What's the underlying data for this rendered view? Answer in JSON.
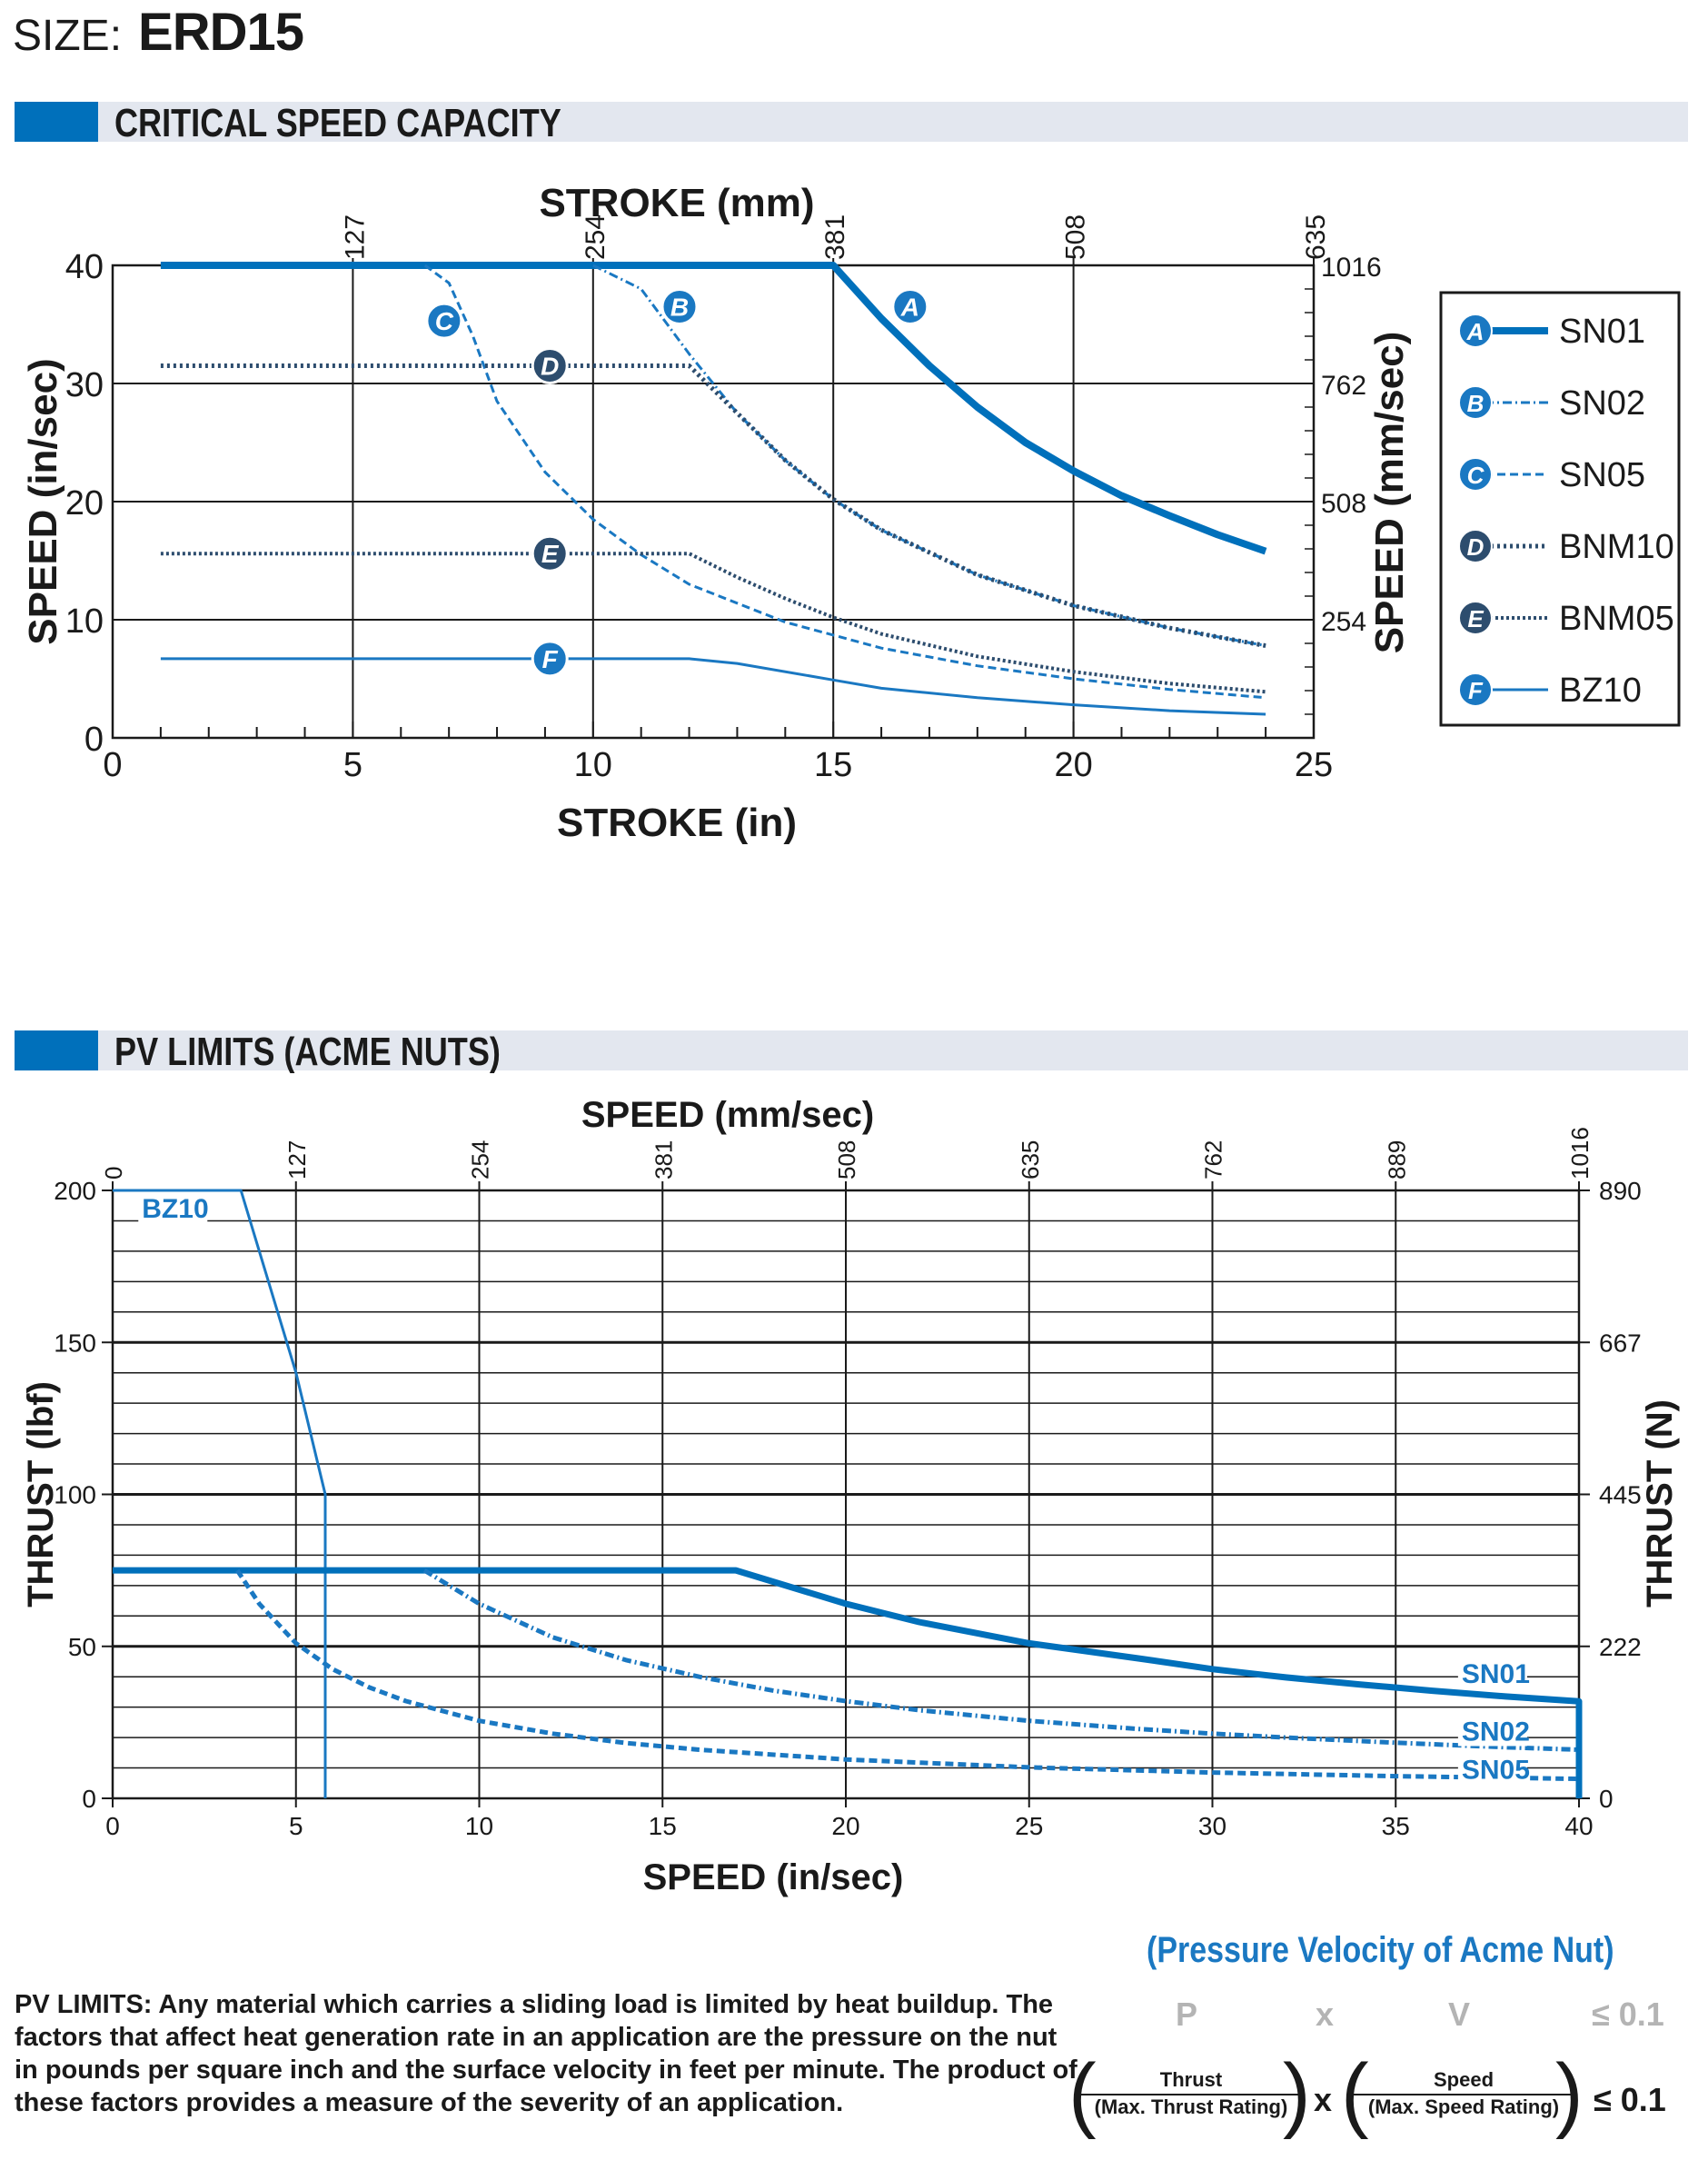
{
  "header": {
    "size_label": "SIZE:",
    "size_value": "ERD15"
  },
  "sections": {
    "critical": "CRITICAL SPEED CAPACITY",
    "pv": "PV LIMITS (ACME NUTS)"
  },
  "chart_data": [
    {
      "type": "line",
      "title": "",
      "xlabel": "STROKE (in)",
      "xlabel_top": "STROKE (mm)",
      "ylabel": "SPEED (in/sec)",
      "ylabel_right": "SPEED (mm/sec)",
      "xlim": [
        0,
        25
      ],
      "ylim": [
        0,
        40
      ],
      "x_ticks": [
        "0",
        "5",
        "10",
        "15",
        "20",
        "25"
      ],
      "y_ticks": [
        "0",
        "10",
        "20",
        "30",
        "40"
      ],
      "top_ticks": [
        "127",
        "254",
        "381",
        "508",
        "635"
      ],
      "right_ticks": [
        "254",
        "508",
        "762",
        "1016"
      ],
      "grid": true,
      "legend_position": "right",
      "series": [
        {
          "name": "SN01",
          "letter": "A",
          "color": "#0070bb",
          "style": "solid-thick",
          "x": [
            1,
            15,
            16,
            17,
            18,
            19,
            20,
            21,
            22,
            23,
            24
          ],
          "y": [
            40,
            40,
            35.5,
            31.5,
            28,
            25,
            22.6,
            20.5,
            18.8,
            17.2,
            15.8
          ]
        },
        {
          "name": "SN02",
          "letter": "B",
          "color": "#1a78c2",
          "style": "dashdot",
          "x": [
            10,
            11,
            12,
            13,
            14,
            15,
            16,
            18,
            20,
            22,
            24
          ],
          "y": [
            40,
            38,
            32.5,
            27.5,
            23.5,
            20.2,
            17.6,
            13.8,
            11.2,
            9.3,
            7.8
          ]
        },
        {
          "name": "SN05",
          "letter": "C",
          "color": "#1a78c2",
          "style": "dashed",
          "x": [
            6.5,
            7,
            7.5,
            8,
            9,
            10,
            11,
            12,
            14,
            16,
            18,
            20,
            22,
            24
          ],
          "y": [
            40,
            38.5,
            34,
            28.5,
            22.5,
            18.5,
            15.5,
            13,
            9.8,
            7.6,
            6.1,
            5,
            4.1,
            3.4
          ]
        },
        {
          "name": "BNM10",
          "letter": "D",
          "color": "#2d4d6e",
          "style": "dotted-thick",
          "x": [
            1,
            12,
            13,
            14,
            15,
            16,
            18,
            20,
            22,
            24
          ],
          "y": [
            31.5,
            31.5,
            27.5,
            23.5,
            20.2,
            17.6,
            13.8,
            11.2,
            9.3,
            7.8
          ]
        },
        {
          "name": "BNM05",
          "letter": "E",
          "color": "#2d4d6e",
          "style": "dotted",
          "x": [
            1,
            12,
            13,
            14,
            15,
            16,
            18,
            20,
            22,
            24
          ],
          "y": [
            15.6,
            15.6,
            13.6,
            11.8,
            10.2,
            8.8,
            6.9,
            5.6,
            4.6,
            3.9
          ]
        },
        {
          "name": "BZ10",
          "letter": "F",
          "color": "#1a78c2",
          "style": "solid",
          "x": [
            1,
            12,
            13,
            15,
            16,
            18,
            20,
            22,
            24
          ],
          "y": [
            6.7,
            6.7,
            6.3,
            4.9,
            4.2,
            3.4,
            2.8,
            2.3,
            2
          ]
        }
      ]
    },
    {
      "type": "line",
      "title": "",
      "xlabel": "SPEED (in/sec)",
      "xlabel_top": "SPEED (mm/sec)",
      "ylabel": "THRUST (lbf)",
      "ylabel_right": "THRUST (N)",
      "xlim": [
        0,
        40
      ],
      "ylim": [
        0,
        200
      ],
      "x_ticks": [
        "0",
        "5",
        "10",
        "15",
        "20",
        "25",
        "30",
        "35",
        "40"
      ],
      "y_ticks": [
        "0",
        "50",
        "100",
        "150",
        "200"
      ],
      "top_ticks": [
        "0",
        "127",
        "254",
        "381",
        "508",
        "635",
        "762",
        "889",
        "1016"
      ],
      "right_ticks": [
        "0",
        "222",
        "445",
        "667",
        "890"
      ],
      "grid": true,
      "series": [
        {
          "name": "BZ10",
          "color": "#1a78c2",
          "style": "solid-thin",
          "x": [
            0,
            3.5,
            5,
            5.8,
            5.8
          ],
          "y": [
            200,
            200,
            140,
            100,
            0
          ]
        },
        {
          "name": "SN01",
          "color": "#0070bb",
          "style": "solid-thick",
          "x": [
            0,
            17,
            20,
            22,
            25,
            28,
            30,
            32,
            34,
            36,
            38,
            40,
            40
          ],
          "y": [
            75,
            75,
            64,
            58,
            51,
            46,
            42.5,
            39.8,
            37.5,
            35.4,
            33.5,
            31.9,
            0
          ]
        },
        {
          "name": "SN02",
          "color": "#1a78c2",
          "style": "dashdot",
          "x": [
            8.5,
            10,
            12,
            14,
            16,
            18,
            20,
            22,
            25,
            28,
            30,
            32,
            35,
            38,
            40
          ],
          "y": [
            75,
            64,
            53,
            45.5,
            40,
            35.5,
            32,
            29,
            25.5,
            22.8,
            21.3,
            20,
            18.3,
            16.8,
            16
          ]
        },
        {
          "name": "SN05",
          "color": "#1a78c2",
          "style": "dashed",
          "x": [
            3.4,
            4,
            5,
            6,
            7,
            8,
            10,
            12,
            14,
            16,
            20,
            25,
            30,
            35,
            40
          ],
          "y": [
            75,
            64,
            51,
            42.5,
            36.5,
            32,
            25.5,
            21.3,
            18.2,
            16,
            12.8,
            10.2,
            8.5,
            7.3,
            6.4
          ]
        }
      ]
    }
  ],
  "pv": {
    "note": "PV LIMITS: Any material which carries a sliding load is limited by heat buildup. The factors that affect heat generation rate in an application are the pressure on the nut in pounds per square inch and the surface velocity in feet per minute. The product of these factors provides a measure of the severity of an application.",
    "title": "(Pressure Velocity of Acme Nut)",
    "p": "P",
    "x": "x",
    "v": "V",
    "le": "≤ 0.1",
    "thrust": "Thrust",
    "thrust_den": "(Max. Thrust Rating)",
    "speed": "Speed",
    "speed_den": "(Max. Speed Rating)",
    "times": "x",
    "result": "≤ 0.1"
  }
}
